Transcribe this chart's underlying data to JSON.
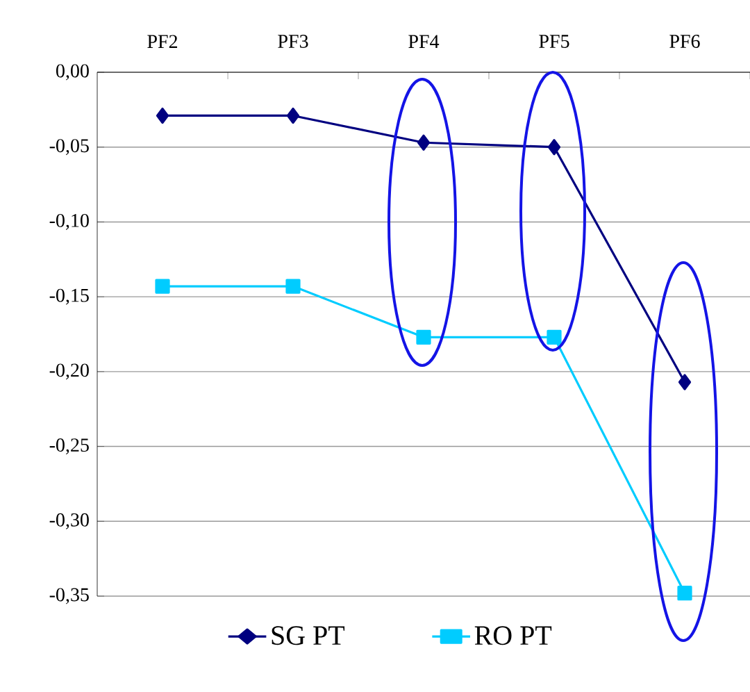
{
  "chart_data": {
    "type": "line",
    "categories": [
      "PF2",
      "PF3",
      "PF4",
      "PF5",
      "PF6"
    ],
    "series": [
      {
        "name": "SG PT",
        "color": "#000080",
        "marker": "diamond",
        "values": [
          -0.029,
          -0.029,
          -0.047,
          -0.05,
          -0.207
        ]
      },
      {
        "name": "RO PT",
        "color": "#00ccff",
        "marker": "square",
        "values": [
          -0.143,
          -0.143,
          -0.177,
          -0.177,
          -0.348
        ]
      }
    ],
    "ylim": [
      -0.35,
      0
    ],
    "yticks": [
      {
        "value": 0,
        "label": "0,00"
      },
      {
        "value": -0.05,
        "label": "-0,05"
      },
      {
        "value": -0.1,
        "label": "-0,10"
      },
      {
        "value": -0.15,
        "label": "-0,15"
      },
      {
        "value": -0.2,
        "label": "-0,20"
      },
      {
        "value": -0.25,
        "label": "-0,25"
      },
      {
        "value": -0.3,
        "label": "-0,30"
      },
      {
        "value": -0.35,
        "label": "-0,35"
      }
    ],
    "grid": "y",
    "legend": "bottom",
    "line_style": "solid"
  }
}
